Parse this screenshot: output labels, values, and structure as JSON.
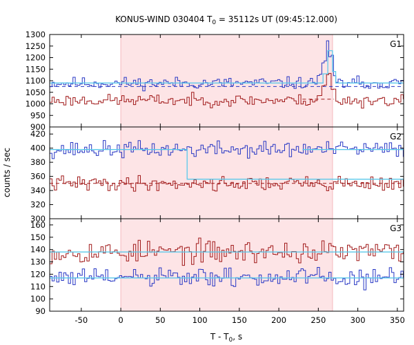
{
  "chart_data": {
    "type": "line",
    "title": {
      "main": "KONUS-WIND 030404 T",
      "sub": "0",
      "rest": " = 35112s UT (09:45:12.000)"
    },
    "xlabel": {
      "main": "T - T",
      "sub": "0",
      "rest": ", s"
    },
    "ylabel": "counts / sec",
    "xlim": [
      -90,
      358
    ],
    "xticks": [
      -50,
      0,
      50,
      100,
      150,
      200,
      250,
      300,
      350
    ],
    "shaded_interval": [
      0,
      268
    ],
    "shade_color": "#fde4e6",
    "colors": {
      "blue": "#2636c4",
      "red": "#a01818",
      "cyan": "#5ac8ea"
    },
    "panels": [
      {
        "label": "G1",
        "ylim": [
          900,
          1300
        ],
        "yticks": [
          900,
          950,
          1000,
          1050,
          1100,
          1150,
          1200,
          1250,
          1300
        ],
        "series": [
          {
            "color": "blue",
            "base": 1090,
            "noise": 22,
            "seed": 11,
            "events": [
              {
                "x": [
                  248,
                  254
                ],
                "value": 1125
              },
              {
                "x": [
                  254,
                  260
                ],
                "value": 1180
              },
              {
                "x": [
                  260,
                  264
                ],
                "value": 1270
              },
              {
                "x": [
                  264,
                  268
                ],
                "value": 1210
              },
              {
                "x": [
                  268,
                  272
                ],
                "value": 1120
              }
            ]
          },
          {
            "color": "red",
            "base": 1015,
            "noise": 22,
            "seed": 23,
            "events": [
              {
                "x": [
                  248,
                  254
                ],
                "value": 1040
              },
              {
                "x": [
                  254,
                  260
                ],
                "value": 1080
              },
              {
                "x": [
                  260,
                  266
                ],
                "value": 1130
              },
              {
                "x": [
                  266,
                  272
                ],
                "value": 1060
              }
            ]
          }
        ],
        "fits": [
          {
            "color": "cyan",
            "style": "solid",
            "points": [
              [
                -90,
                1090
              ],
              [
                256,
                1090
              ],
              [
                256,
                1130
              ],
              [
                262,
                1130
              ],
              [
                262,
                1230
              ],
              [
                268,
                1230
              ],
              [
                268,
                1140
              ],
              [
                272,
                1140
              ],
              [
                272,
                1090
              ],
              [
                358,
                1090
              ]
            ]
          },
          {
            "color": "blue",
            "style": "dashed",
            "points": [
              [
                -90,
                1075
              ],
              [
                358,
                1075
              ]
            ]
          },
          {
            "color": "red",
            "style": "dashed",
            "points": [
              [
                230,
                1020
              ],
              [
                270,
                1020
              ]
            ]
          }
        ]
      },
      {
        "label": "G2",
        "ylim": [
          300,
          430
        ],
        "yticks": [
          300,
          320,
          340,
          360,
          380,
          400,
          420
        ],
        "series": [
          {
            "color": "blue",
            "base": 398,
            "noise": 10,
            "seed": 37,
            "events": []
          },
          {
            "color": "red",
            "base": 350,
            "noise": 9,
            "seed": 41,
            "events": []
          }
        ],
        "fits": [
          {
            "color": "cyan",
            "style": "solid",
            "points": [
              [
                -90,
                398
              ],
              [
                84,
                398
              ],
              [
                84,
                356
              ],
              [
                358,
                356
              ]
            ]
          },
          {
            "color": "cyan",
            "style": "solid",
            "points": [
              [
                230,
                398
              ],
              [
                358,
                398
              ]
            ]
          },
          {
            "color": "red",
            "style": "dashed",
            "points": [
              [
                -90,
                350
              ],
              [
                358,
                350
              ]
            ]
          }
        ]
      },
      {
        "label": "G3",
        "ylim": [
          90,
          165
        ],
        "yticks": [
          90,
          100,
          110,
          120,
          130,
          140,
          150,
          160
        ],
        "series": [
          {
            "color": "red",
            "base": 138,
            "noise": 8,
            "seed": 53,
            "events": []
          },
          {
            "color": "blue",
            "base": 117,
            "noise": 7,
            "seed": 61,
            "events": []
          }
        ],
        "fits": [
          {
            "color": "cyan",
            "style": "solid",
            "points": [
              [
                -90,
                138
              ],
              [
                358,
                138
              ]
            ]
          },
          {
            "color": "cyan",
            "style": "solid",
            "points": [
              [
                -90,
                117
              ],
              [
                358,
                117
              ]
            ]
          }
        ]
      }
    ]
  }
}
